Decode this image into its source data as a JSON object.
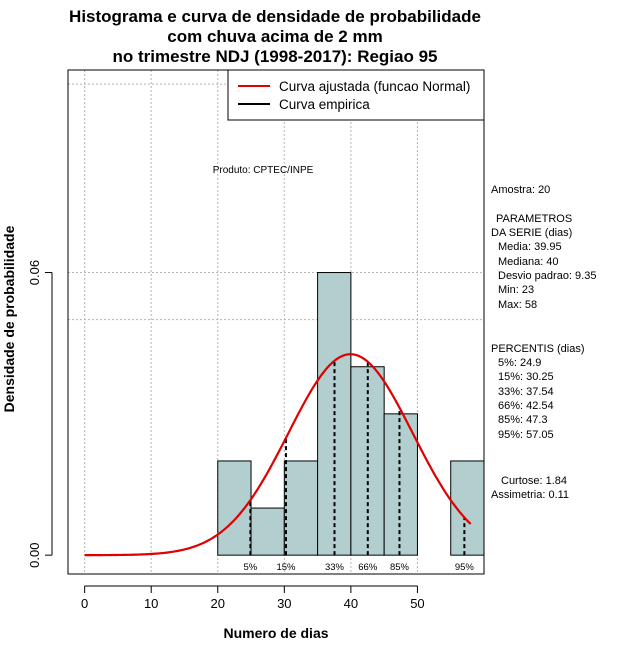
{
  "chart_data": {
    "type": "histogram",
    "title_lines": [
      "Histograma e curva de densidade de probabilidade",
      "com chuva acima de 2 mm",
      "no trimestre NDJ (1998-2017): Regiao 95"
    ],
    "xlabel": "Numero de dias",
    "ylabel": "Densidade de probabilidade",
    "xlim": [
      -2.5,
      60
    ],
    "ylim": [
      -0.004,
      0.103
    ],
    "x_ticks": [
      "0",
      "10",
      "20",
      "30",
      "40",
      "50"
    ],
    "y_ticks": [
      "0.00",
      "0.06"
    ],
    "bins": [
      {
        "from": 20,
        "to": 25,
        "density": 0.02
      },
      {
        "from": 25,
        "to": 30,
        "density": 0.01
      },
      {
        "from": 30,
        "to": 35,
        "density": 0.02
      },
      {
        "from": 35,
        "to": 40,
        "density": 0.06
      },
      {
        "from": 40,
        "to": 45,
        "density": 0.04
      },
      {
        "from": 45,
        "to": 50,
        "density": 0.03
      },
      {
        "from": 50,
        "to": 55,
        "density": 0.0
      },
      {
        "from": 55,
        "to": 60,
        "density": 0.02
      }
    ],
    "normal_fit": {
      "mean": 39.95,
      "sd": 9.35,
      "x_from": 0,
      "x_to": 58,
      "color": "#e00000"
    },
    "grid_y": [
      0.06,
      0.05,
      0.1
    ],
    "bar_color": "#b3cece",
    "percentile_lines": [
      {
        "label": "5%",
        "x": 24.9
      },
      {
        "label": "15%",
        "x": 30.25
      },
      {
        "label": "33%",
        "x": 37.54
      },
      {
        "label": "66%",
        "x": 42.54
      },
      {
        "label": "85%",
        "x": 47.3
      },
      {
        "label": "95%",
        "x": 57.05
      }
    ],
    "legend": [
      {
        "label": "Curva ajustada (funcao Normal)",
        "color": "#e00000"
      },
      {
        "label": "Curva empirica",
        "color": "#000000"
      }
    ],
    "legend_position": "top-right",
    "credit": "Produto: CPTEC/INPE"
  },
  "stats": {
    "amostra": "Amostra: 20",
    "param_title_1": "PARAMETROS",
    "param_title_2": "DA SERIE (dias)",
    "media": "Media: 39.95",
    "mediana": "Mediana: 40",
    "desvio": "Desvio padrao: 9.35",
    "min": "Min: 23",
    "max": "Max: 58",
    "percentis_title": "PERCENTIS (dias)",
    "p5": "5%: 24.9",
    "p15": "15%: 30.25",
    "p33": "33%: 37.54",
    "p66": "66%: 42.54",
    "p85": "85%: 47.3",
    "p95": "95%: 57.05",
    "curtose": "Curtose: 1.84",
    "assimetria": "Assimetria: 0.11"
  }
}
